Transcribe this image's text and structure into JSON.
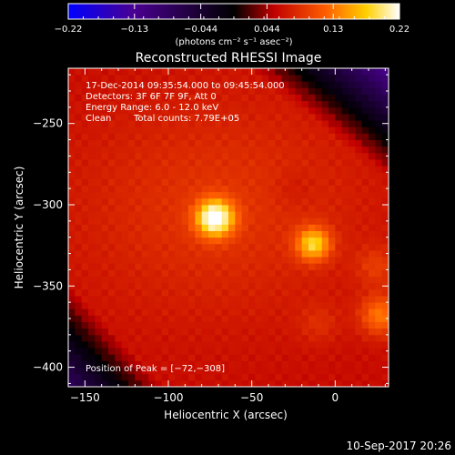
{
  "chart_data": {
    "type": "heatmap",
    "title": "Reconstructed RHESSI Image",
    "xlabel": "Heliocentric X (arcsec)",
    "ylabel": "Heliocentric Y (arcsec)",
    "xlim": [
      -160,
      32
    ],
    "ylim": [
      -412,
      -216
    ],
    "x_ticks": [
      -150,
      -100,
      -50,
      0
    ],
    "y_ticks": [
      -250,
      -300,
      -350,
      -400
    ],
    "x_tick_labels": [
      "−150",
      "−100",
      "−50",
      "0"
    ],
    "y_tick_labels": [
      "−250",
      "−300",
      "−350",
      "−400"
    ],
    "colorbar": {
      "min": -0.22,
      "max": 0.22,
      "tick_labels": [
        "−0.22",
        "−0.13",
        "−0.044",
        "0.044",
        "0.13",
        "0.22"
      ],
      "units": "(photons cm⁻² s⁻¹ asec⁻²)",
      "colormap": [
        "#0000ff",
        "#4a0090",
        "#000000",
        "#c00000",
        "#ff6000",
        "#ffd000",
        "#ffffff"
      ]
    },
    "annotations": {
      "time_range": "17-Dec-2014 09:35:54.000 to 09:45:54.000",
      "detectors": "Detectors: 3F 6F 7F 9F, Att 0",
      "energy": "Energy Range: 6.0 - 12.0 keV",
      "method": "Clean",
      "counts": "Total counts: 7.79E+05",
      "peak": "Position of Peak = [−72,−308]"
    },
    "sources": [
      {
        "x": -72,
        "y": -308,
        "peak": 0.22
      },
      {
        "x": -13,
        "y": -324,
        "peak": 0.17
      },
      {
        "x": 27,
        "y": -368,
        "peak": 0.13
      },
      {
        "x": 25,
        "y": -338,
        "peak": 0.09
      },
      {
        "x": -10,
        "y": -373,
        "peak": 0.08
      },
      {
        "x": -25,
        "y": -290,
        "peak": 0.05
      }
    ],
    "background_level": 0.06,
    "footer": "10-Sep-2017 20:26"
  }
}
